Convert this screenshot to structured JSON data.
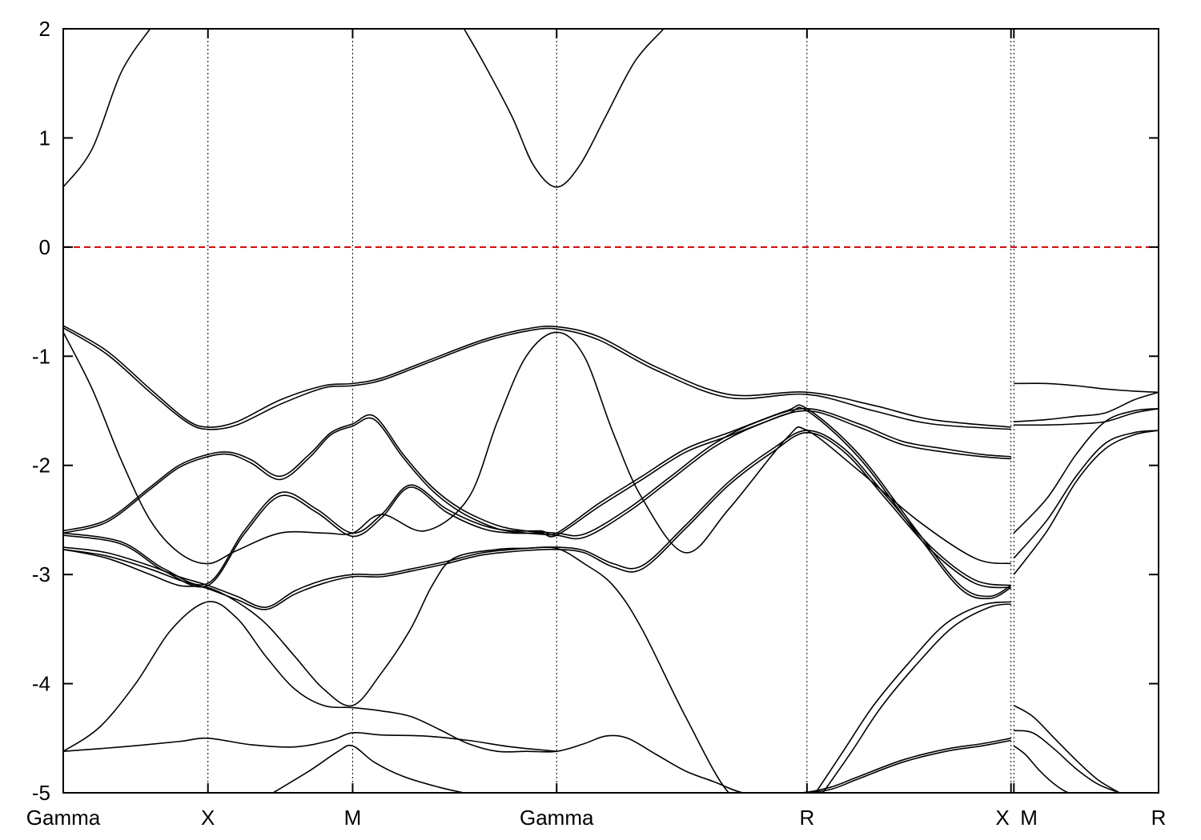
{
  "chart_data": {
    "type": "line",
    "title": "",
    "xlabel": "",
    "ylabel": "",
    "xlim": [
      0,
      7.57
    ],
    "ylim": [
      -5,
      2
    ],
    "y_ticks": [
      {
        "value": 2,
        "label": "2"
      },
      {
        "value": 1,
        "label": "1"
      },
      {
        "value": 0,
        "label": "0"
      },
      {
        "value": -1,
        "label": "-1"
      },
      {
        "value": -2,
        "label": "-2"
      },
      {
        "value": -3,
        "label": "-3"
      },
      {
        "value": -4,
        "label": "-4"
      },
      {
        "value": -5,
        "label": "-5"
      }
    ],
    "k_points": [
      {
        "label": "Gamma",
        "x": 0.0
      },
      {
        "label": "X",
        "x": 1.0
      },
      {
        "label": "M",
        "x": 2.0
      },
      {
        "label": "Gamma",
        "x": 3.41
      },
      {
        "label": "R",
        "x": 5.14
      },
      {
        "label": "X",
        "x": 6.55
      },
      {
        "label": "M",
        "x": 6.57
      },
      {
        "label": "R",
        "x": 7.57
      }
    ],
    "reference_line": {
      "name": "Fermi level",
      "y": 0,
      "color": "#d40000",
      "style": "dashed"
    },
    "band_color": "#000000",
    "grid": "vertical dotted lines at k-points",
    "legend": "none",
    "series": [
      {
        "x": [
          0.0,
          0.2,
          0.4,
          0.6
        ],
        "y": [
          0.55,
          0.9,
          1.6,
          2.0
        ]
      },
      {
        "x": [
          2.77,
          2.9,
          3.1,
          3.25,
          3.41,
          3.57,
          3.75,
          3.95,
          4.15
        ],
        "y": [
          2.0,
          1.7,
          1.2,
          0.75,
          0.55,
          0.75,
          1.2,
          1.7,
          2.0
        ]
      },
      {
        "x": [
          0.0,
          0.3,
          0.6,
          0.85,
          1.0,
          1.2,
          1.5,
          1.8,
          2.0,
          2.2,
          2.5,
          2.9,
          3.2,
          3.41,
          3.7,
          4.1,
          4.6,
          5.14,
          5.6,
          6.0,
          6.55
        ],
        "y": [
          -0.72,
          -0.95,
          -1.3,
          -1.58,
          -1.65,
          -1.6,
          -1.4,
          -1.27,
          -1.25,
          -1.2,
          -1.05,
          -0.85,
          -0.75,
          -0.73,
          -0.82,
          -1.1,
          -1.35,
          -1.33,
          -1.45,
          -1.58,
          -1.65
        ]
      },
      {
        "x": [
          0.0,
          0.3,
          0.6,
          0.85,
          1.0,
          1.2,
          1.5,
          1.8,
          2.0,
          2.2,
          2.5,
          2.9,
          3.2,
          3.41,
          3.7,
          4.1,
          4.6,
          5.14,
          5.6,
          6.0,
          6.55
        ],
        "y": [
          -0.74,
          -0.98,
          -1.33,
          -1.6,
          -1.67,
          -1.63,
          -1.44,
          -1.29,
          -1.27,
          -1.22,
          -1.07,
          -0.87,
          -0.77,
          -0.75,
          -0.85,
          -1.13,
          -1.38,
          -1.35,
          -1.5,
          -1.62,
          -1.67
        ]
      },
      {
        "x": [
          0.0,
          0.2,
          0.4,
          0.6,
          0.8,
          1.0,
          1.2,
          1.5,
          1.8,
          2.0,
          2.2,
          2.5,
          2.8,
          3.0,
          3.2,
          3.41,
          3.6,
          3.8,
          4.0,
          4.3,
          4.6,
          5.0,
          5.14,
          5.5,
          5.9,
          6.3,
          6.55
        ],
        "y": [
          -0.78,
          -1.3,
          -1.95,
          -2.5,
          -2.8,
          -2.9,
          -2.78,
          -2.62,
          -2.62,
          -2.62,
          -2.45,
          -2.6,
          -2.3,
          -1.6,
          -1.0,
          -0.78,
          -1.0,
          -1.7,
          -2.3,
          -2.8,
          -2.4,
          -1.75,
          -1.68,
          -2.05,
          -2.5,
          -2.85,
          -2.9
        ]
      },
      {
        "x": [
          0.0,
          0.3,
          0.6,
          0.8,
          1.0,
          1.15,
          1.3,
          1.5,
          1.7,
          1.85,
          2.0,
          2.15,
          2.35,
          2.55,
          2.75,
          3.0,
          3.2,
          3.41,
          3.6,
          3.9,
          4.2,
          4.5,
          4.8,
          5.14,
          5.5,
          5.8,
          6.1,
          6.35,
          6.55
        ],
        "y": [
          -2.6,
          -2.5,
          -2.2,
          -2.0,
          -1.9,
          -1.88,
          -1.95,
          -2.1,
          -1.9,
          -1.7,
          -1.62,
          -1.55,
          -1.9,
          -2.2,
          -2.4,
          -2.55,
          -2.6,
          -2.62,
          -2.63,
          -2.4,
          -2.1,
          -1.8,
          -1.6,
          -1.48,
          -1.62,
          -1.78,
          -1.85,
          -1.9,
          -1.92
        ]
      },
      {
        "x": [
          0.0,
          0.3,
          0.6,
          0.8,
          1.0,
          1.15,
          1.3,
          1.5,
          1.7,
          1.85,
          2.0,
          2.15,
          2.35,
          2.55,
          2.75,
          3.0,
          3.2,
          3.41,
          3.6,
          3.9,
          4.2,
          4.5,
          4.8,
          5.14,
          5.5,
          5.8,
          6.1,
          6.35,
          6.55
        ],
        "y": [
          -2.62,
          -2.52,
          -2.22,
          -2.02,
          -1.92,
          -1.9,
          -1.98,
          -2.13,
          -1.93,
          -1.72,
          -1.64,
          -1.58,
          -1.93,
          -2.23,
          -2.43,
          -2.58,
          -2.62,
          -2.64,
          -2.66,
          -2.43,
          -2.13,
          -1.83,
          -1.63,
          -1.5,
          -1.65,
          -1.81,
          -1.88,
          -1.92,
          -1.94
        ]
      },
      {
        "x": [
          0.0,
          0.4,
          0.7,
          1.0,
          1.25,
          1.5,
          1.75,
          2.0,
          2.2,
          2.4,
          2.65,
          2.9,
          3.1,
          3.3,
          3.41,
          3.7,
          4.0,
          4.3,
          4.6,
          5.0,
          5.14,
          5.5,
          5.9,
          6.2,
          6.4,
          6.55
        ],
        "y": [
          -2.62,
          -2.7,
          -2.95,
          -3.08,
          -2.6,
          -2.25,
          -2.4,
          -2.62,
          -2.45,
          -2.18,
          -2.4,
          -2.55,
          -2.6,
          -2.6,
          -2.62,
          -2.35,
          -2.1,
          -1.85,
          -1.7,
          -1.5,
          -1.48,
          -1.9,
          -2.6,
          -3.1,
          -3.2,
          -3.1
        ]
      },
      {
        "x": [
          0.0,
          0.4,
          0.7,
          1.0,
          1.25,
          1.5,
          1.75,
          2.0,
          2.2,
          2.4,
          2.65,
          2.9,
          3.1,
          3.3,
          3.41,
          3.7,
          4.0,
          4.3,
          4.6,
          5.0,
          5.14,
          5.5,
          5.9,
          6.2,
          6.4,
          6.55
        ],
        "y": [
          -2.64,
          -2.72,
          -2.97,
          -3.1,
          -2.63,
          -2.28,
          -2.43,
          -2.65,
          -2.48,
          -2.2,
          -2.43,
          -2.58,
          -2.62,
          -2.62,
          -2.64,
          -2.38,
          -2.13,
          -1.88,
          -1.73,
          -1.53,
          -1.5,
          -1.93,
          -2.63,
          -3.13,
          -3.22,
          -3.12
        ]
      },
      {
        "x": [
          0.0,
          0.3,
          0.6,
          0.8,
          1.0,
          1.2,
          1.4,
          1.6,
          1.8,
          2.0,
          2.2,
          2.4,
          2.65,
          2.9,
          3.2,
          3.41,
          3.6,
          3.8,
          4.0,
          4.3,
          4.6,
          4.9,
          5.14,
          5.4,
          5.7,
          6.0,
          6.3,
          6.55
        ],
        "y": [
          -2.75,
          -2.8,
          -2.92,
          -3.02,
          -3.1,
          -3.2,
          -3.3,
          -3.15,
          -3.05,
          -3.0,
          -3.0,
          -2.95,
          -2.88,
          -2.8,
          -2.76,
          -2.75,
          -2.78,
          -2.9,
          -2.92,
          -2.55,
          -2.15,
          -1.85,
          -1.68,
          -1.85,
          -2.3,
          -2.75,
          -3.05,
          -3.1
        ]
      },
      {
        "x": [
          0.0,
          0.3,
          0.6,
          0.8,
          1.0,
          1.2,
          1.4,
          1.6,
          1.8,
          2.0,
          2.2,
          2.4,
          2.65,
          2.9,
          3.2,
          3.41,
          3.6,
          3.8,
          4.0,
          4.3,
          4.6,
          4.9,
          5.14,
          5.4,
          5.7,
          6.0,
          6.3,
          6.55
        ],
        "y": [
          -2.77,
          -2.83,
          -2.95,
          -3.05,
          -3.13,
          -3.23,
          -3.32,
          -3.18,
          -3.08,
          -3.02,
          -3.02,
          -2.97,
          -2.9,
          -2.82,
          -2.78,
          -2.77,
          -2.8,
          -2.93,
          -2.95,
          -2.58,
          -2.18,
          -1.88,
          -1.7,
          -1.88,
          -2.33,
          -2.78,
          -3.08,
          -3.12
        ]
      },
      {
        "x": [
          0.0,
          0.3,
          0.6,
          0.8,
          1.0,
          1.2,
          1.4,
          1.6,
          1.8,
          2.0,
          2.2,
          2.4,
          2.55,
          2.7,
          3.0,
          3.2,
          3.41,
          3.6,
          3.8,
          4.0,
          4.3,
          4.6,
          4.8,
          5.0,
          5.14
        ],
        "y": [
          -2.77,
          -2.85,
          -3.0,
          -3.1,
          -3.12,
          -3.25,
          -3.45,
          -3.75,
          -4.05,
          -4.2,
          -3.9,
          -3.5,
          -3.1,
          -2.85,
          -2.77,
          -2.76,
          -2.76,
          -2.9,
          -3.1,
          -3.5,
          -4.3,
          -5.0,
          -5.0,
          -5.0,
          -5.0
        ]
      },
      {
        "x": [
          0.0,
          0.25,
          0.5,
          0.75,
          1.0,
          1.2,
          1.4,
          1.6,
          1.8,
          2.0,
          2.2,
          2.4,
          2.6,
          2.8,
          3.0,
          3.2,
          3.41,
          3.6,
          3.75,
          3.9,
          4.1,
          4.3,
          4.5,
          4.7,
          4.92
        ],
        "y": [
          -4.62,
          -4.4,
          -4.0,
          -3.5,
          -3.25,
          -3.4,
          -3.75,
          -4.05,
          -4.2,
          -4.22,
          -4.25,
          -4.3,
          -4.42,
          -4.55,
          -4.62,
          -4.62,
          -4.62,
          -4.55,
          -4.48,
          -4.5,
          -4.65,
          -4.8,
          -4.9,
          -5.0,
          -5.0
        ]
      },
      {
        "x": [
          0.0,
          0.4,
          0.8,
          1.0,
          1.3,
          1.6,
          1.85,
          2.0,
          2.2,
          2.5,
          2.8,
          3.1,
          3.41
        ],
        "y": [
          -4.62,
          -4.58,
          -4.53,
          -4.5,
          -4.56,
          -4.58,
          -4.52,
          -4.45,
          -4.47,
          -4.48,
          -4.52,
          -4.58,
          -4.62
        ]
      },
      {
        "x": [
          1.45,
          1.7,
          1.9,
          2.0,
          2.15,
          2.35,
          2.6,
          2.77
        ],
        "y": [
          -5.0,
          -4.8,
          -4.62,
          -4.57,
          -4.72,
          -4.85,
          -4.95,
          -5.0
        ]
      },
      {
        "x": [
          4.9,
          5.1,
          5.3,
          5.5,
          5.8,
          6.1,
          6.35,
          6.55
        ],
        "y": [
          -5.0,
          -5.0,
          -4.95,
          -4.85,
          -4.7,
          -4.6,
          -4.55,
          -4.5
        ]
      },
      {
        "x": [
          4.9,
          5.1,
          5.3,
          5.5,
          5.8,
          6.1,
          6.35,
          6.55
        ],
        "y": [
          -5.0,
          -5.0,
          -4.97,
          -4.87,
          -4.72,
          -4.62,
          -4.57,
          -4.52
        ]
      },
      {
        "x": [
          5.2,
          5.4,
          5.6,
          5.85,
          6.1,
          6.35,
          6.55
        ],
        "y": [
          -5.0,
          -4.6,
          -4.2,
          -3.8,
          -3.45,
          -3.28,
          -3.25
        ]
      },
      {
        "x": [
          5.25,
          5.45,
          5.65,
          5.9,
          6.15,
          6.4,
          6.55
        ],
        "y": [
          -5.0,
          -4.62,
          -4.22,
          -3.82,
          -3.48,
          -3.3,
          -3.27
        ]
      },
      {
        "x": [
          6.57,
          6.8,
          7.0,
          7.2,
          7.4,
          7.57
        ],
        "y": [
          -1.25,
          -1.25,
          -1.27,
          -1.3,
          -1.32,
          -1.33
        ]
      },
      {
        "x": [
          6.57,
          6.8,
          7.0,
          7.2,
          7.4,
          7.57
        ],
        "y": [
          -1.6,
          -1.58,
          -1.55,
          -1.52,
          -1.4,
          -1.33
        ]
      },
      {
        "x": [
          6.57,
          6.8,
          7.0,
          7.2,
          7.4,
          7.57
        ],
        "y": [
          -1.63,
          -1.63,
          -1.62,
          -1.6,
          -1.52,
          -1.48
        ]
      },
      {
        "x": [
          6.57,
          6.8,
          7.0,
          7.2,
          7.4,
          7.57
        ],
        "y": [
          -2.62,
          -2.3,
          -1.9,
          -1.6,
          -1.5,
          -1.48
        ]
      },
      {
        "x": [
          6.57,
          6.8,
          7.0,
          7.2,
          7.4,
          7.57
        ],
        "y": [
          -2.85,
          -2.5,
          -2.1,
          -1.8,
          -1.7,
          -1.68
        ]
      },
      {
        "x": [
          6.57,
          6.8,
          7.0,
          7.2,
          7.4,
          7.57
        ],
        "y": [
          -3.0,
          -2.6,
          -2.15,
          -1.85,
          -1.72,
          -1.68
        ]
      },
      {
        "x": [
          6.57,
          6.7,
          6.85,
          7.0,
          7.15,
          7.3
        ],
        "y": [
          -4.2,
          -4.3,
          -4.5,
          -4.7,
          -4.88,
          -5.0
        ]
      },
      {
        "x": [
          6.57,
          6.7,
          6.85,
          7.0,
          7.15,
          7.3
        ],
        "y": [
          -4.43,
          -4.45,
          -4.6,
          -4.78,
          -4.92,
          -5.0
        ]
      },
      {
        "x": [
          6.57,
          6.65,
          6.75,
          6.85,
          6.95,
          7.05
        ],
        "y": [
          -4.57,
          -4.65,
          -4.8,
          -4.92,
          -5.0,
          -5.0
        ]
      }
    ]
  }
}
